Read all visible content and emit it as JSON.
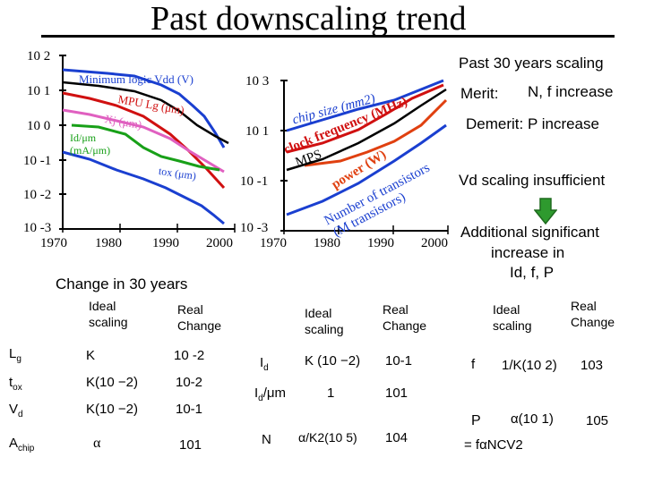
{
  "slide": {
    "title": "Past downscaling trend",
    "subtitle_right": "Past 30 years scaling",
    "merit_label": "Merit:",
    "merit_value": "N, f increase",
    "demerit": "Demerit: P increase",
    "vd_note": "Vd scaling insufficient",
    "additional_line1": "Additional significant",
    "additional_line2": "increase in",
    "additional_line3": "Id, f, P",
    "change_heading": "Change in 30 years"
  },
  "left_chart": {
    "y_ticks": [
      "10 2",
      "10 1",
      "10 0",
      "10 -1",
      "10 -2",
      "10 -3"
    ],
    "x_ticks": [
      "1970",
      "1980",
      "1990",
      "2000"
    ],
    "labels": {
      "min_logic": "Minimum logic Vdd (V)",
      "lg": "MPU Lg (μm)",
      "xj": "Xj (μm)",
      "id1": "Id/μm",
      "id2": "(mA/μm)",
      "tox": "tox (μm)"
    },
    "colors": {
      "vdd": "#1a3fd0",
      "lg": "#d01010",
      "xj": "#e060c0",
      "id": "#18a018",
      "tox": "#1a3fd0",
      "black": "#000000"
    }
  },
  "right_chart": {
    "y_ticks": [
      "10 3",
      "10 1",
      "10 -1",
      "10 -3"
    ],
    "x_ticks": [
      "1970",
      "1980",
      "1990",
      "2000"
    ],
    "labels": {
      "chip_size": "chip size (mm2)",
      "clock_freq": "clock frequency (MHz)",
      "mps": "MPS",
      "power": "power (W)",
      "num_transistors": "Number of transistors",
      "m_transistors": "(M transistors)"
    },
    "colors": {
      "chip": "#1a3fd0",
      "clock": "#d01010",
      "power": "#e04010",
      "num": "#1a3fd0",
      "black": "#000000"
    }
  },
  "table1": {
    "headers": [
      "Ideal scaling",
      "Real Change"
    ],
    "rows": [
      {
        "param": "Lg",
        "ideal": "K",
        "real": "10 -2"
      },
      {
        "param": "tox",
        "ideal": "K(10 −2)",
        "real": "10-2"
      },
      {
        "param": "Vd",
        "ideal": "K(10 −2)",
        "real": "10-1"
      },
      {
        "param": "Achip",
        "ideal": "α",
        "real": "101"
      }
    ]
  },
  "table2": {
    "headers": [
      "Ideal scaling",
      "Real Change"
    ],
    "rows": [
      {
        "param": "Id",
        "ideal": "K (10 −2)",
        "real": "10-1"
      },
      {
        "param": "Id/μm",
        "ideal": "1",
        "real": "101"
      },
      {
        "param": "N",
        "ideal": "α/K2(10 5)",
        "real": "104"
      }
    ]
  },
  "table3": {
    "headers": [
      "Ideal scaling",
      "Real Change"
    ],
    "rows": [
      {
        "param": "f",
        "ideal": "1/K(10 2)",
        "real": "103"
      },
      {
        "param": "P",
        "ideal": "α(10 1)",
        "real": "105"
      }
    ],
    "formula": "= fαNCV2"
  },
  "arrow_colors": {
    "fill": "#2e9a2e",
    "stroke": "#1e6a1e"
  }
}
